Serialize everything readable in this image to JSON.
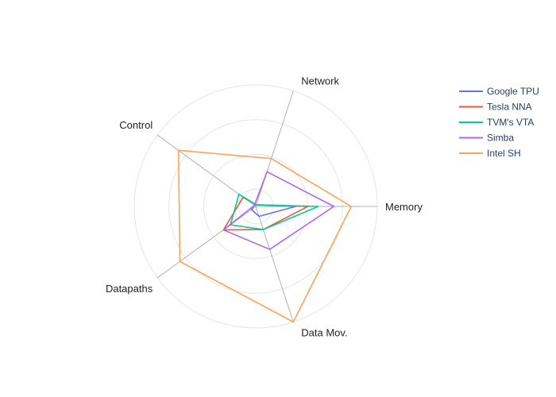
{
  "chart_data": {
    "type": "radar",
    "axes": [
      "Memory",
      "Network",
      "Control",
      "Datapaths",
      "Data Mov."
    ],
    "rmax": 7,
    "grid": true,
    "legend_position": "top-right",
    "series": [
      {
        "name": "Google TPU",
        "color": "#636efa",
        "values": [
          2.3,
          0.1,
          0.1,
          0.3,
          0.6
        ]
      },
      {
        "name": "Tesla NNA",
        "color": "#ef553b",
        "values": [
          3.0,
          0.1,
          0.9,
          2.3,
          1.4
        ]
      },
      {
        "name": "TVM's VTA",
        "color": "#00cc96",
        "values": [
          3.6,
          0.1,
          1.2,
          1.8,
          1.4
        ]
      },
      {
        "name": "Simba",
        "color": "#ab63fa",
        "values": [
          4.5,
          2.1,
          0.1,
          2.3,
          2.6
        ]
      },
      {
        "name": "Intel SH",
        "color": "#ffa15a",
        "values": [
          5.5,
          2.9,
          5.5,
          5.4,
          7.0
        ]
      }
    ]
  }
}
